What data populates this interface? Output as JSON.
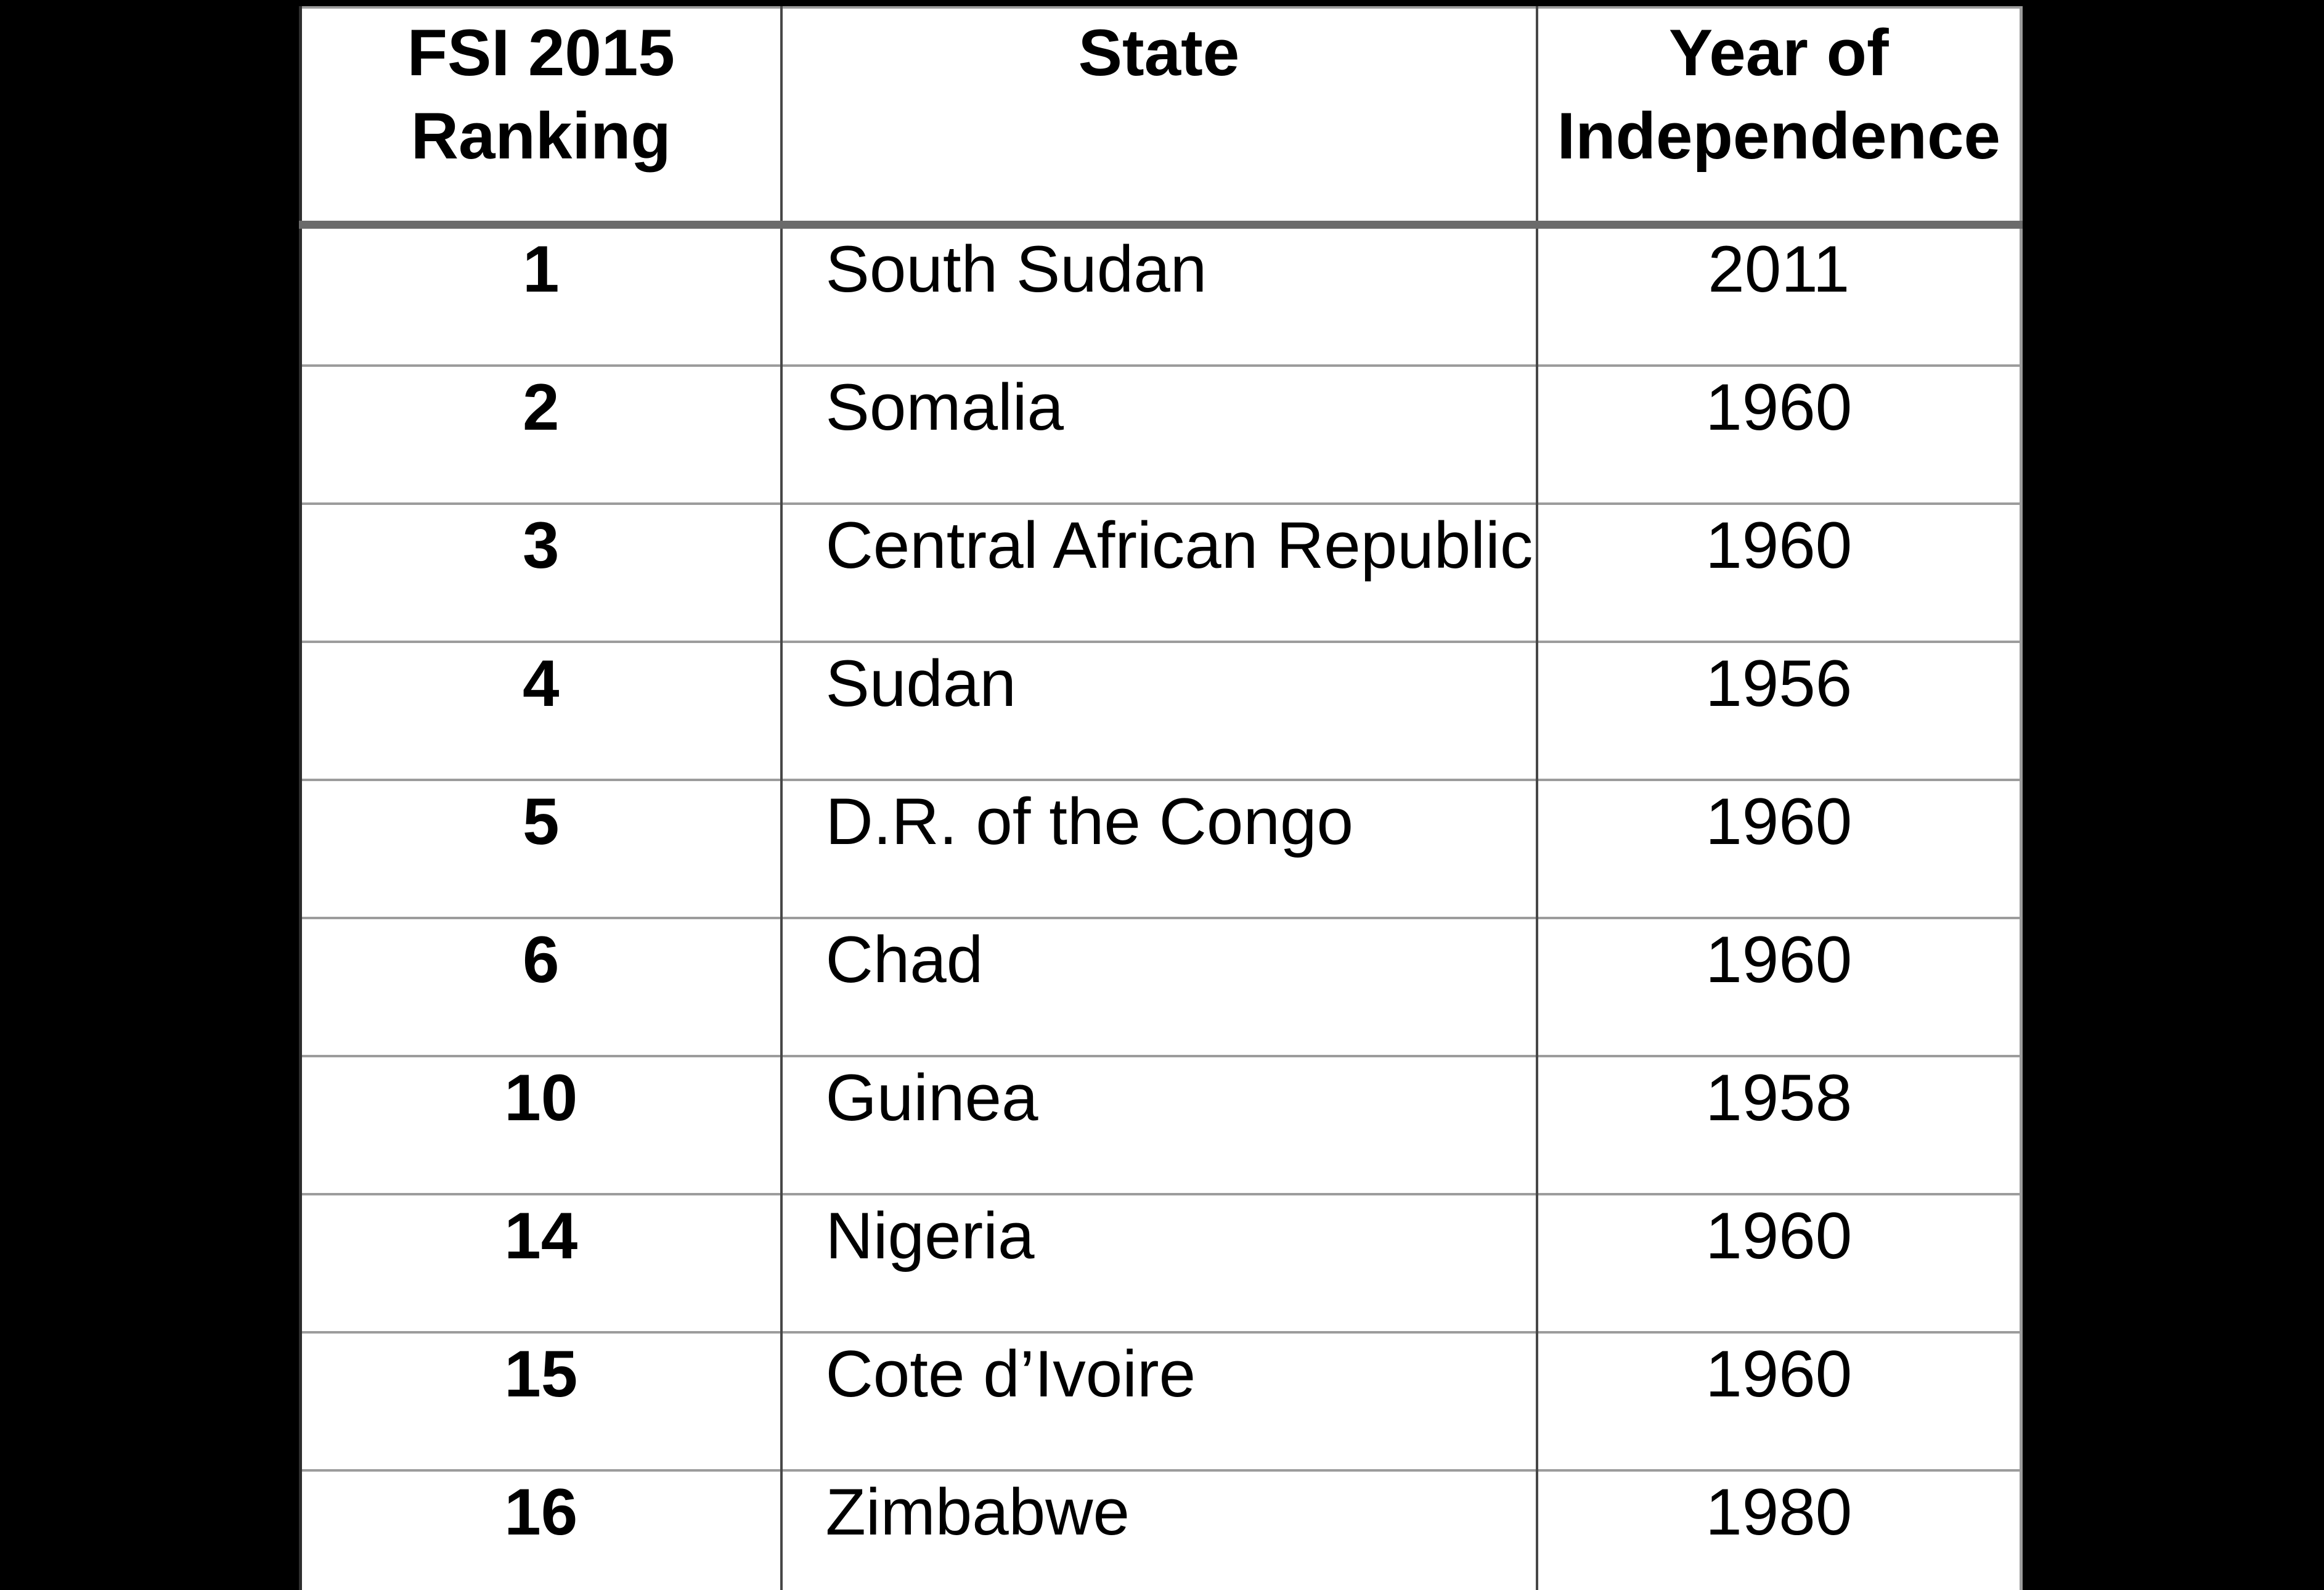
{
  "background_color": "#000000",
  "chart_data": {
    "type": "table",
    "title": "",
    "columns": [
      "FSI 2015 Ranking",
      "State",
      "Year of Independence"
    ],
    "rows": [
      [
        "1",
        "South Sudan",
        "2011"
      ],
      [
        "2",
        "Somalia",
        "1960"
      ],
      [
        "3",
        "Central African Republic",
        "1960"
      ],
      [
        "4",
        "Sudan",
        "1956"
      ],
      [
        "5",
        "D.R. of the Congo",
        "1960"
      ],
      [
        "6",
        "Chad",
        "1960"
      ],
      [
        "10",
        "Guinea",
        "1958"
      ],
      [
        "14",
        "Nigeria",
        "1960"
      ],
      [
        "15",
        "Cote d’Ivoire",
        "1960"
      ],
      [
        "16",
        "Zimbabwe",
        "1980"
      ]
    ]
  },
  "table": {
    "columns": [
      {
        "key": "ranking",
        "label": "FSI 2015 Ranking"
      },
      {
        "key": "state",
        "label": "State"
      },
      {
        "key": "year",
        "label": "Year of Independence"
      }
    ],
    "rows": [
      {
        "ranking": "1",
        "state": "South Sudan",
        "year": "2011"
      },
      {
        "ranking": "2",
        "state": "Somalia",
        "year": "1960"
      },
      {
        "ranking": "3",
        "state": "Central African Republic",
        "year": "1960"
      },
      {
        "ranking": "4",
        "state": "Sudan",
        "year": "1956"
      },
      {
        "ranking": "5",
        "state": "D.R. of the Congo",
        "year": "1960"
      },
      {
        "ranking": "6",
        "state": "Chad",
        "year": "1960"
      },
      {
        "ranking": "10",
        "state": "Guinea",
        "year": "1958"
      },
      {
        "ranking": "14",
        "state": "Nigeria",
        "year": "1960"
      },
      {
        "ranking": "15",
        "state": "Cote d’Ivoire",
        "year": "1960"
      },
      {
        "ranking": "16",
        "state": "Zimbabwe",
        "year": "1980"
      }
    ],
    "colors": {
      "table_background": "#ffffff",
      "text": "#000000",
      "row_separator": "#9c9c9c",
      "header_separator": "#6b6b6b",
      "column_separator": "#474747",
      "outer_left_border": "#2e2e2e",
      "outer_border": "#9c9c9c"
    }
  }
}
